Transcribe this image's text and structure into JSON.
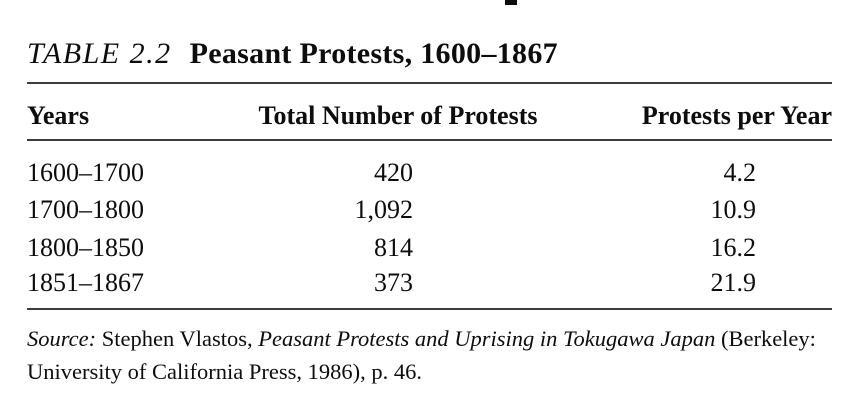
{
  "page": {
    "background": "#ffffff",
    "text_color": "#0d0d0d",
    "rule_color": "#3d3d3d"
  },
  "title": {
    "label": "TABLE 2.2",
    "text": "Peasant Protests, 1600–1867"
  },
  "table": {
    "headers": {
      "years": "Years",
      "total": "Total Number of Protests",
      "per_year": "Protests per Year"
    },
    "rows": [
      {
        "years": "1600–1700",
        "total": "420",
        "per_year": "4.2"
      },
      {
        "years": "1700–1800",
        "total": "1,092",
        "per_year": "10.9"
      },
      {
        "years": "1800–1850",
        "total": "814",
        "per_year": "16.2"
      },
      {
        "years": "1851–1867",
        "total": "373",
        "per_year": "21.9"
      }
    ]
  },
  "source": {
    "line1": [
      {
        "text": "Source:"
      },
      {
        "text": " Stephen Vlastos, "
      },
      {
        "text": "Peasant Protests and Uprising in Tokugawa Japan"
      },
      {
        "text": " (Berkeley:"
      }
    ],
    "line2": "University of California Press, 1986), p. 46."
  }
}
